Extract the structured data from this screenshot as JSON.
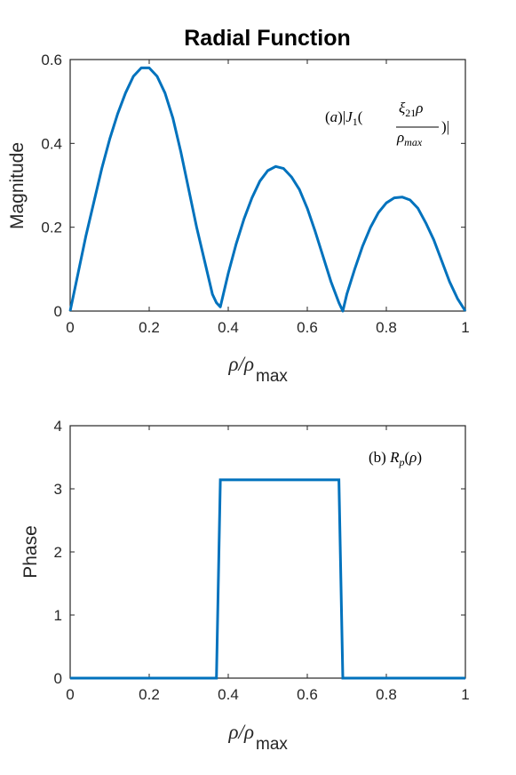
{
  "page_title": "Radial Function",
  "chart_data": [
    {
      "type": "line",
      "ylabel": "Magnitude",
      "xlabel_main": "ρ/ρ",
      "xlabel_sub": "max",
      "annotation": "(a)|J₁(ξ₂₁ρ / ρmax)|",
      "xlim": [
        0,
        1
      ],
      "ylim": [
        0,
        0.6
      ],
      "xticks": [
        "0",
        "0.2",
        "0.4",
        "0.6",
        "0.8",
        "1"
      ],
      "yticks": [
        "0",
        "0.2",
        "0.4",
        "0.6"
      ],
      "line_color": "#0072BD",
      "x": [
        0,
        0.02,
        0.04,
        0.06,
        0.08,
        0.1,
        0.12,
        0.14,
        0.16,
        0.18,
        0.2,
        0.22,
        0.24,
        0.26,
        0.28,
        0.3,
        0.32,
        0.34,
        0.36,
        0.37,
        0.38,
        0.4,
        0.42,
        0.44,
        0.46,
        0.48,
        0.5,
        0.52,
        0.54,
        0.56,
        0.58,
        0.6,
        0.62,
        0.64,
        0.66,
        0.68,
        0.69,
        0.7,
        0.72,
        0.74,
        0.76,
        0.78,
        0.8,
        0.82,
        0.84,
        0.86,
        0.88,
        0.9,
        0.92,
        0.94,
        0.96,
        0.98,
        1.0
      ],
      "y": [
        0,
        0.09,
        0.18,
        0.26,
        0.34,
        0.41,
        0.47,
        0.52,
        0.56,
        0.58,
        0.58,
        0.56,
        0.52,
        0.46,
        0.38,
        0.29,
        0.2,
        0.12,
        0.04,
        0.02,
        0.01,
        0.09,
        0.16,
        0.22,
        0.27,
        0.31,
        0.335,
        0.345,
        0.34,
        0.32,
        0.29,
        0.245,
        0.19,
        0.13,
        0.07,
        0.02,
        0.0,
        0.04,
        0.1,
        0.155,
        0.2,
        0.235,
        0.258,
        0.27,
        0.272,
        0.265,
        0.245,
        0.21,
        0.17,
        0.12,
        0.07,
        0.03,
        0.0
      ]
    },
    {
      "type": "line",
      "ylabel": "Phase",
      "xlabel_main": "ρ/ρ",
      "xlabel_sub": "max",
      "annotation": "(b) Rp(ρ)",
      "xlim": [
        0,
        1
      ],
      "ylim": [
        0,
        4
      ],
      "xticks": [
        "0",
        "0.2",
        "0.4",
        "0.6",
        "0.8",
        "1"
      ],
      "yticks": [
        "0",
        "1",
        "2",
        "3",
        "4"
      ],
      "line_color": "#0072BD",
      "x": [
        0,
        0.37,
        0.38,
        0.68,
        0.69,
        1.0
      ],
      "y": [
        0,
        0,
        3.1416,
        3.1416,
        0,
        0
      ]
    }
  ]
}
